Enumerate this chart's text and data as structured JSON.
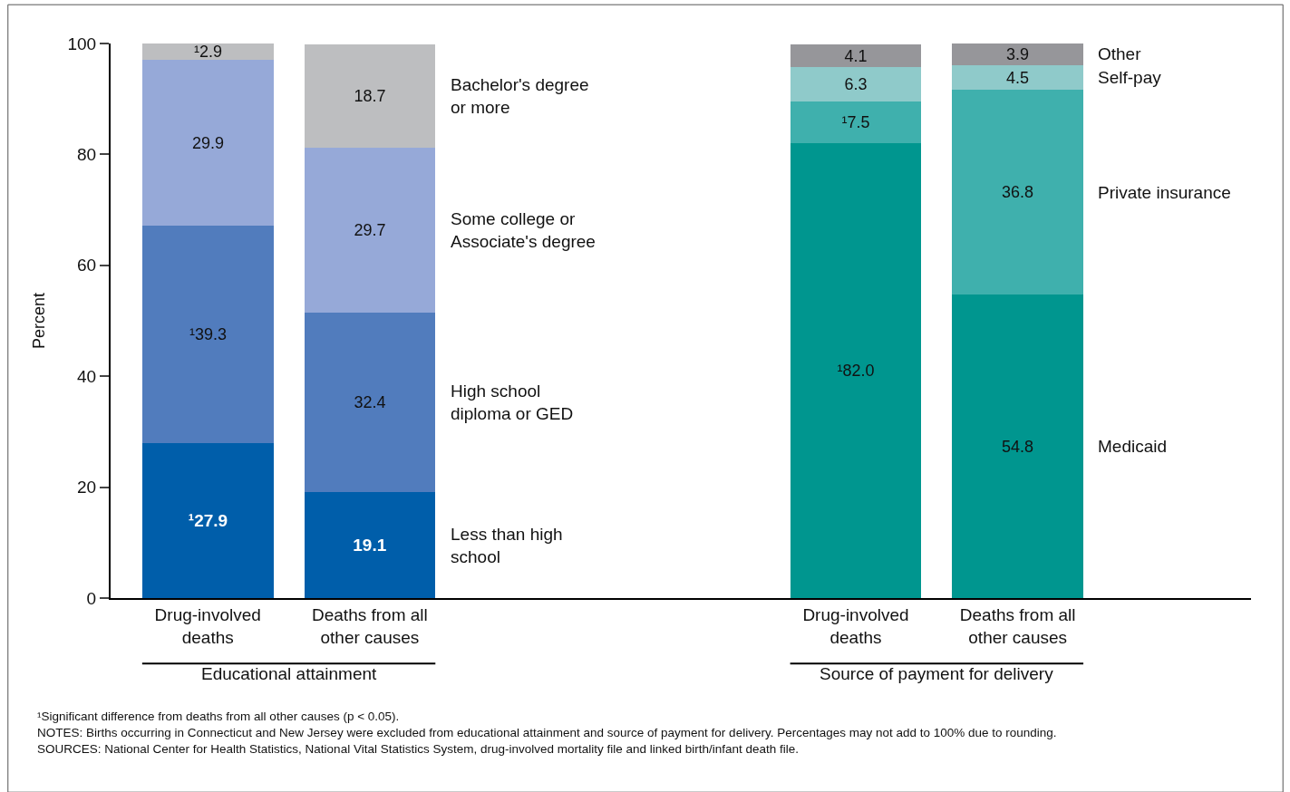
{
  "chart_data": {
    "type": "bar",
    "stacked": true,
    "ylabel": "Percent",
    "categories": [
      "Drug-involved deaths",
      "Deaths from all other causes",
      null,
      null,
      "Drug-involved deaths",
      "Deaths from all other causes"
    ],
    "series": [
      {
        "name": "Less than high school",
        "color": "#005eaa",
        "values": [
          27.9,
          19.1,
          null,
          null,
          null,
          null
        ],
        "value_labels": [
          "¹27.9",
          "19.1",
          null,
          null,
          null,
          null
        ]
      },
      {
        "name": "High school diploma or GED",
        "color": "#517cbd",
        "values": [
          39.3,
          32.4,
          null,
          null,
          null,
          null
        ],
        "value_labels": [
          "¹39.3",
          "32.4",
          null,
          null,
          null,
          null
        ]
      },
      {
        "name": "Some college or Associate's degree",
        "color": "#96a9d8",
        "values": [
          29.9,
          29.7,
          null,
          null,
          null,
          null
        ],
        "value_labels": [
          "29.9",
          "29.7",
          null,
          null,
          null,
          null
        ]
      },
      {
        "name": "Bachelor's degree or more",
        "color": "#bdbec0",
        "values": [
          2.9,
          18.7,
          null,
          null,
          null,
          null
        ],
        "value_labels": [
          "¹2.9",
          "18.7",
          null,
          null,
          null,
          null
        ]
      },
      {
        "name": "Medicaid",
        "color": "#00968f",
        "values": [
          null,
          null,
          null,
          null,
          82.0,
          54.8
        ],
        "value_labels": [
          null,
          null,
          null,
          null,
          "¹82.0",
          "54.8"
        ]
      },
      {
        "name": "Private insurance",
        "color": "#3fb0ad",
        "values": [
          null,
          null,
          null,
          null,
          7.5,
          36.8
        ],
        "value_labels": [
          null,
          null,
          null,
          null,
          "¹7.5",
          "36.8"
        ]
      },
      {
        "name": "Self-pay",
        "color": "#8fcaca",
        "values": [
          null,
          null,
          null,
          null,
          6.3,
          4.5
        ],
        "value_labels": [
          null,
          null,
          null,
          null,
          "6.3",
          "4.5"
        ]
      },
      {
        "name": "Other",
        "color": "#96969a",
        "values": [
          null,
          null,
          null,
          null,
          4.1,
          3.9
        ],
        "value_labels": [
          null,
          null,
          null,
          null,
          "4.1",
          "3.9"
        ]
      }
    ],
    "ylim": [
      0,
      100
    ],
    "yticks": [
      0,
      20,
      40,
      60,
      80,
      100
    ],
    "legend": false,
    "annotations": [
      "Educational attainment",
      "Source of payment for delivery",
      "¹Significant difference from deaths from all other causes (p < 0.05).",
      "NOTES: Births occurring in Connecticut and New Jersey were excluded from educational attainment and source of payment for delivery. Percentages may not add to 100% due to rounding.",
      "SOURCES: National Center for Health Statistics, National Vital Statistics System, drug-involved mortality file and linked birth/infant death file."
    ]
  }
}
